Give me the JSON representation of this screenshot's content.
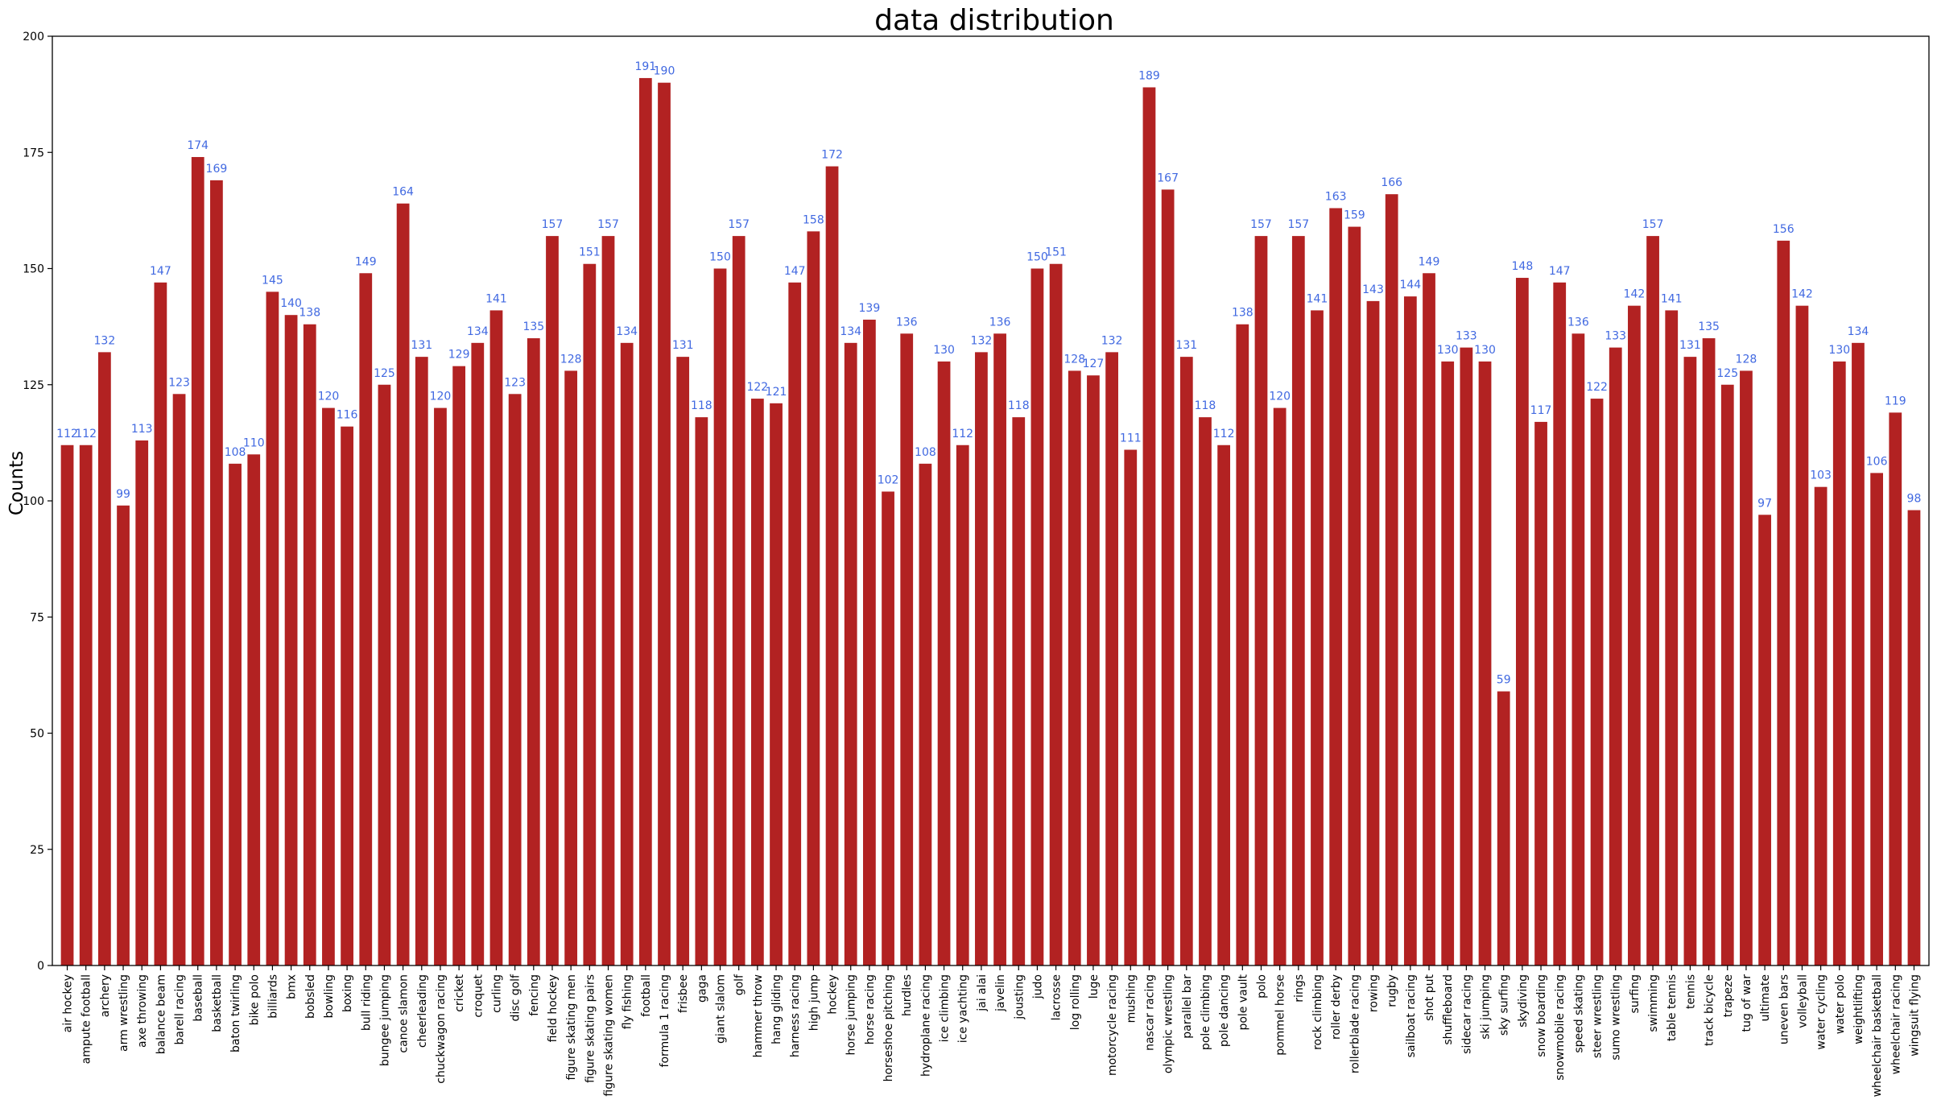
{
  "chart_data": {
    "type": "bar",
    "title": "data distribution",
    "xlabel": "",
    "ylabel": "Counts",
    "ylim": [
      0,
      200
    ],
    "yticks": [
      0,
      25,
      50,
      75,
      100,
      125,
      150,
      175,
      200
    ],
    "grid": false,
    "bar_color": "#b22222",
    "label_color": "#4169e1",
    "categories": [
      "air hockey",
      "ampute football",
      "archery",
      "arm wrestling",
      "axe throwing",
      "balance beam",
      "barell racing",
      "baseball",
      "basketball",
      "baton twirling",
      "bike polo",
      "billiards",
      "bmx",
      "bobsled",
      "bowling",
      "boxing",
      "bull riding",
      "bungee jumping",
      "canoe slamon",
      "cheerleading",
      "chuckwagon racing",
      "cricket",
      "croquet",
      "curling",
      "disc golf",
      "fencing",
      "field hockey",
      "figure skating men",
      "figure skating pairs",
      "figure skating women",
      "fly fishing",
      "football",
      "formula 1 racing",
      "frisbee",
      "gaga",
      "giant slalom",
      "golf",
      "hammer throw",
      "hang gliding",
      "harness racing",
      "high jump",
      "hockey",
      "horse jumping",
      "horse racing",
      "horseshoe pitching",
      "hurdles",
      "hydroplane racing",
      "ice climbing",
      "ice yachting",
      "jai alai",
      "javelin",
      "jousting",
      "judo",
      "lacrosse",
      "log rolling",
      "luge",
      "motorcycle racing",
      "mushing",
      "nascar racing",
      "olympic wrestling",
      "parallel bar",
      "pole climbing",
      "pole dancing",
      "pole vault",
      "polo",
      "pommel horse",
      "rings",
      "rock climbing",
      "roller derby",
      "rollerblade racing",
      "rowing",
      "rugby",
      "sailboat racing",
      "shot put",
      "shuffleboard",
      "sidecar racing",
      "ski jumping",
      "sky surfing",
      "skydiving",
      "snow boarding",
      "snowmobile racing",
      "speed skating",
      "steer wrestling",
      "sumo wrestling",
      "surfing",
      "swimming",
      "table tennis",
      "tennis",
      "track bicycle",
      "trapeze",
      "tug of war",
      "ultimate",
      "uneven bars",
      "volleyball",
      "water cycling",
      "water polo",
      "weightlifting",
      "wheelchair basketball",
      "wheelchair racing",
      "wingsuit flying"
    ],
    "values": [
      112,
      112,
      132,
      99,
      113,
      147,
      123,
      174,
      169,
      108,
      110,
      145,
      140,
      138,
      120,
      116,
      149,
      125,
      164,
      131,
      120,
      129,
      134,
      141,
      123,
      135,
      157,
      128,
      151,
      157,
      134,
      191,
      190,
      131,
      118,
      150,
      157,
      122,
      121,
      147,
      158,
      172,
      134,
      139,
      102,
      136,
      108,
      130,
      112,
      132,
      136,
      118,
      150,
      151,
      128,
      127,
      132,
      111,
      189,
      167,
      131,
      118,
      112,
      138,
      157,
      120,
      157,
      141,
      163,
      159,
      143,
      166,
      144,
      149,
      130,
      133,
      130,
      59,
      148,
      117,
      147,
      136,
      122,
      133,
      142,
      157,
      141,
      131,
      135,
      125,
      128,
      97,
      156,
      142,
      103,
      130,
      134,
      106,
      119,
      98
    ]
  }
}
